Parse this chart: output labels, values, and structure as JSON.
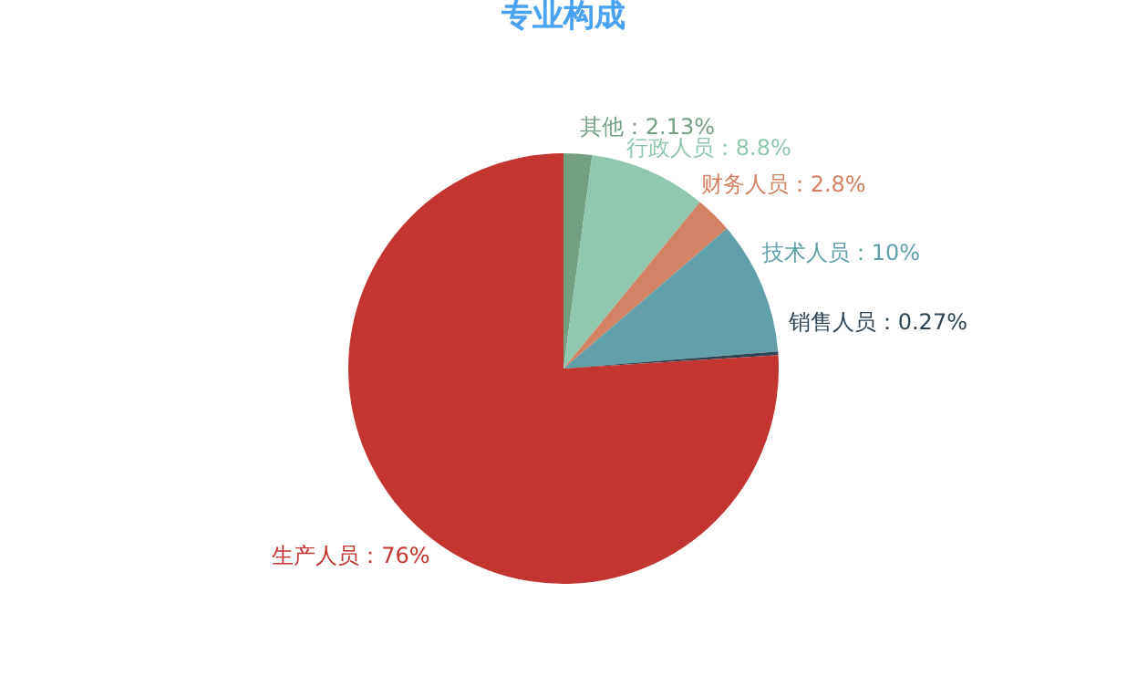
{
  "chart_data": {
    "type": "pie",
    "title": "专业构成",
    "categories": [
      "其他",
      "行政人员",
      "财务人员",
      "技术人员",
      "销售人员",
      "生产人员"
    ],
    "values": [
      2.13,
      8.8,
      2.8,
      10,
      0.27,
      76
    ],
    "colors": [
      "#749f83",
      "#91c7ae",
      "#d48265",
      "#61a0a8",
      "#2f4554",
      "#c23531"
    ],
    "value_labels": [
      "2.13%",
      "8.8%",
      "2.8%",
      "10%",
      "0.27%",
      "76%"
    ],
    "legend": false
  }
}
